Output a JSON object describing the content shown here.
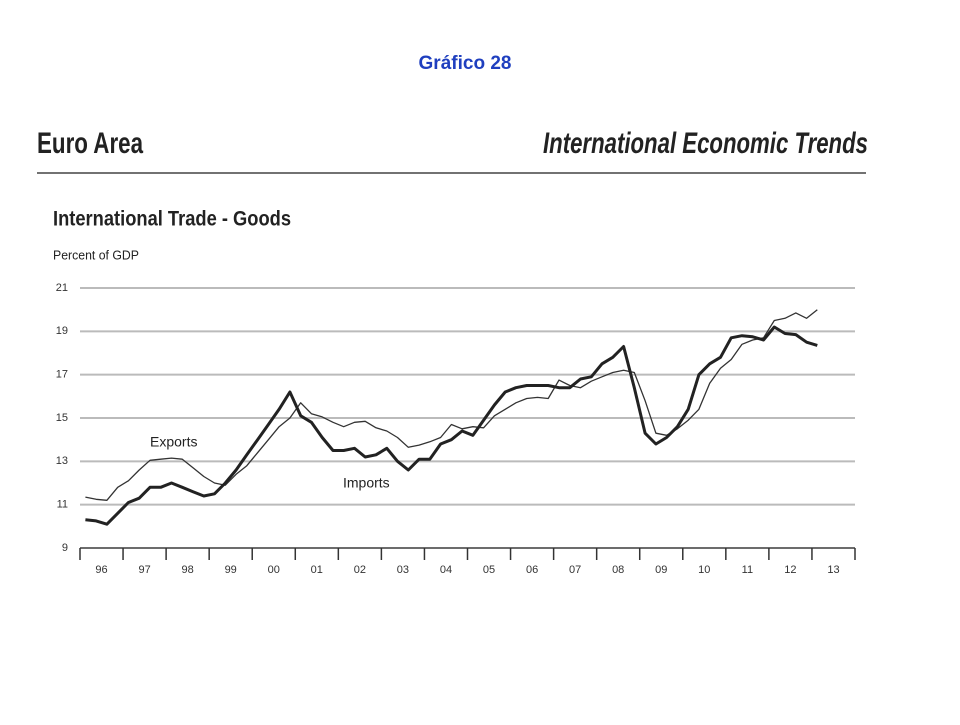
{
  "page_title": "Gráfico 28",
  "header": {
    "left": "Euro Area",
    "right": "International Economic Trends"
  },
  "chart_data": {
    "type": "line",
    "title": "International Trade - Goods",
    "y_label": "Percent of GDP",
    "categories": [
      null,
      "96",
      null,
      null,
      null,
      "97",
      null,
      null,
      null,
      "98",
      null,
      null,
      null,
      "99",
      null,
      null,
      null,
      "00",
      null,
      null,
      null,
      "01",
      null,
      null,
      null,
      "02",
      null,
      null,
      null,
      "03",
      null,
      null,
      null,
      "04",
      null,
      null,
      null,
      "05",
      null,
      null,
      null,
      "06",
      null,
      null,
      null,
      "07",
      null,
      null,
      null,
      "08",
      null,
      null,
      null,
      "09",
      null,
      null,
      null,
      "10",
      null,
      null,
      null,
      "11",
      null,
      null,
      null,
      "12",
      null,
      null,
      null,
      "13",
      null,
      null
    ],
    "series": [
      {
        "name": "Exports",
        "color": "#333333",
        "width": 1.3,
        "values": [
          11.35,
          11.25,
          11.2,
          11.8,
          12.1,
          12.6,
          13.05,
          13.1,
          13.15,
          13.1,
          12.7,
          12.3,
          12.0,
          11.9,
          12.4,
          12.8,
          13.4,
          14.0,
          14.6,
          15.0,
          15.7,
          15.2,
          15.05,
          14.8,
          14.6,
          14.8,
          14.85,
          14.55,
          14.4,
          14.1,
          13.65,
          13.75,
          13.9,
          14.1,
          14.7,
          14.5,
          14.6,
          14.55,
          15.1,
          15.4,
          15.7,
          15.9,
          15.95,
          15.9,
          16.75,
          16.5,
          16.4,
          16.7,
          16.9,
          17.1,
          17.2,
          17.1,
          15.8,
          14.3,
          14.2,
          14.5,
          14.9,
          15.4,
          16.6,
          17.3,
          17.7,
          18.4,
          18.6,
          18.7,
          19.5,
          19.6,
          19.85,
          19.6,
          20.0,
          null,
          null,
          null
        ]
      },
      {
        "name": "Imports",
        "color": "#222222",
        "width": 3,
        "values": [
          10.3,
          10.25,
          10.1,
          10.6,
          11.1,
          11.3,
          11.8,
          11.8,
          12.0,
          11.8,
          11.6,
          11.4,
          11.5,
          12.0,
          12.6,
          13.3,
          14.0,
          14.7,
          15.4,
          16.2,
          15.1,
          14.8,
          14.1,
          13.5,
          13.5,
          13.6,
          13.2,
          13.3,
          13.6,
          13.0,
          12.6,
          13.1,
          13.1,
          13.8,
          14.0,
          14.4,
          14.2,
          14.9,
          15.6,
          16.2,
          16.4,
          16.5,
          16.5,
          16.5,
          16.4,
          16.4,
          16.8,
          16.9,
          17.5,
          17.8,
          18.3,
          16.4,
          14.3,
          13.8,
          14.1,
          14.6,
          15.4,
          17.0,
          17.5,
          17.8,
          18.7,
          18.8,
          18.75,
          18.6,
          19.2,
          18.9,
          18.85,
          18.5,
          18.35,
          null,
          null,
          null
        ]
      }
    ],
    "annotations": [
      {
        "text": "Exports",
        "series": 0
      },
      {
        "text": "Imports",
        "series": 1
      }
    ],
    "ylim": [
      9,
      21
    ],
    "yticks": [
      9,
      11,
      13,
      15,
      17,
      19,
      21
    ],
    "grid": true
  }
}
